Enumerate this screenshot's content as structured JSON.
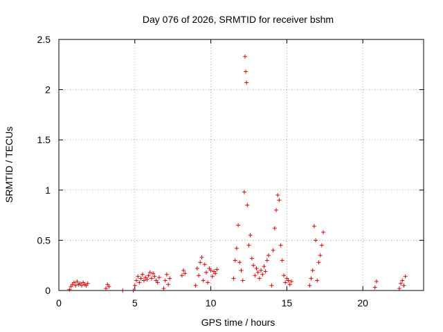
{
  "chart_data": {
    "type": "scatter",
    "title": "Day 076 of 2026, SRMTID for receiver bshm",
    "xlabel": "GPS time / hours",
    "ylabel": "SRMTID / TECUs",
    "xlim": [
      0,
      24
    ],
    "ylim": [
      0,
      2.5
    ],
    "xticks": [
      0,
      5,
      10,
      15,
      20
    ],
    "xtick_labels": [
      "0",
      "5",
      "10",
      "15",
      "20"
    ],
    "yticks": [
      0,
      0.5,
      1,
      1.5,
      2,
      2.5
    ],
    "ytick_labels": [
      "0",
      "0.5",
      "1",
      "1.5",
      "2",
      "2.5"
    ],
    "grid": true,
    "marker": "+",
    "color": "#e00000",
    "series": [
      {
        "name": "SRMTID",
        "x": [
          0.7,
          0.8,
          0.9,
          1.0,
          1.1,
          1.2,
          1.3,
          1.4,
          1.5,
          1.6,
          1.7,
          1.8,
          1.9,
          3.1,
          3.2,
          3.3,
          4.2,
          4.9,
          5.0,
          5.1,
          5.2,
          5.3,
          5.4,
          5.5,
          5.6,
          5.7,
          5.8,
          5.9,
          6.0,
          6.1,
          6.2,
          6.3,
          6.4,
          6.5,
          6.6,
          6.9,
          7.0,
          7.1,
          7.2,
          7.3,
          8.1,
          8.2,
          8.3,
          9.0,
          9.1,
          9.2,
          9.3,
          9.4,
          9.5,
          9.6,
          9.7,
          9.8,
          9.9,
          10.0,
          10.1,
          10.2,
          10.3,
          10.4,
          11.5,
          11.6,
          11.7,
          11.8,
          11.9,
          12.0,
          12.1,
          12.2,
          12.25,
          12.3,
          12.35,
          12.4,
          12.5,
          12.6,
          12.7,
          12.8,
          12.9,
          13.0,
          13.1,
          13.2,
          13.3,
          13.4,
          13.5,
          13.6,
          13.7,
          13.8,
          14.0,
          14.1,
          14.2,
          14.3,
          14.4,
          14.5,
          14.6,
          14.7,
          14.8,
          14.9,
          15.0,
          15.1,
          15.2,
          15.3,
          16.5,
          16.6,
          16.7,
          16.8,
          16.9,
          17.0,
          17.1,
          17.2,
          17.3,
          17.4,
          20.8,
          20.9,
          22.4,
          22.5,
          22.6,
          22.7,
          22.8
        ],
        "y": [
          0.01,
          0.04,
          0.06,
          0.08,
          0.05,
          0.09,
          0.06,
          0.07,
          0.05,
          0.08,
          0.06,
          0.05,
          0.07,
          0.02,
          0.06,
          0.04,
          0.0,
          0.0,
          0.05,
          0.1,
          0.14,
          0.08,
          0.12,
          0.16,
          0.1,
          0.13,
          0.11,
          0.15,
          0.18,
          0.12,
          0.17,
          0.14,
          0.1,
          0.08,
          0.13,
          0.02,
          0.1,
          0.16,
          0.06,
          0.12,
          0.15,
          0.2,
          0.17,
          0.05,
          0.22,
          0.15,
          0.28,
          0.33,
          0.1,
          0.26,
          0.18,
          0.08,
          0.22,
          0.2,
          0.14,
          0.19,
          0.17,
          0.21,
          0.12,
          0.3,
          0.42,
          0.65,
          0.28,
          0.2,
          0.1,
          0.98,
          2.33,
          2.18,
          2.07,
          0.85,
          0.45,
          0.55,
          0.32,
          0.25,
          0.15,
          0.22,
          0.18,
          0.12,
          0.2,
          0.16,
          0.24,
          0.19,
          0.3,
          0.35,
          0.05,
          0.4,
          0.62,
          0.8,
          0.95,
          0.9,
          0.45,
          0.3,
          0.15,
          0.08,
          0.12,
          0.1,
          0.06,
          0.09,
          0.05,
          0.12,
          0.2,
          0.64,
          0.5,
          0.1,
          0.28,
          0.35,
          0.45,
          0.58,
          0.03,
          0.09,
          0.02,
          0.07,
          0.1,
          0.05,
          0.14
        ]
      }
    ]
  }
}
